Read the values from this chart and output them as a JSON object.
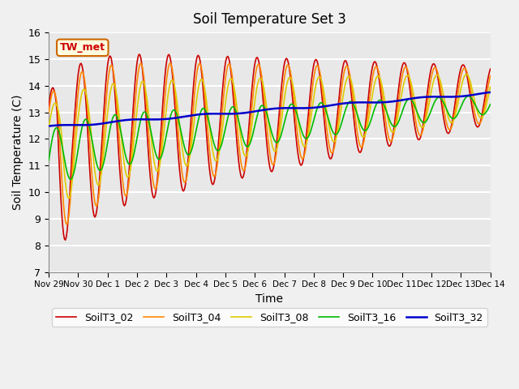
{
  "title": "Soil Temperature Set 3",
  "xlabel": "Time",
  "ylabel": "Soil Temperature (C)",
  "ylim": [
    7.0,
    16.0
  ],
  "yticks": [
    7.0,
    8.0,
    9.0,
    10.0,
    11.0,
    12.0,
    13.0,
    14.0,
    15.0,
    16.0
  ],
  "annotation": "TW_met",
  "background_color": "#e8e8e8",
  "grid_color": "#ffffff",
  "legend_entries": [
    "SoilT3_02",
    "SoilT3_04",
    "SoilT3_08",
    "SoilT3_16",
    "SoilT3_32"
  ],
  "line_colors": [
    "#cc0000",
    "#ff8800",
    "#ddcc00",
    "#00bb00",
    "#0000cc"
  ],
  "line_widths": [
    1.2,
    1.2,
    1.2,
    1.2,
    1.8
  ],
  "xtick_labels": [
    "Nov 29",
    "Nov 30",
    "Dec 1",
    "Dec 2",
    "Dec 3",
    "Dec 4",
    "Dec 5",
    "Dec 6",
    "Dec 7",
    "Dec 8",
    "Dec 9",
    "Dec 10",
    "Dec 11",
    "Dec 12",
    "Dec 13",
    "Dec 14"
  ],
  "n_points": 480,
  "xlim": [
    0,
    15
  ]
}
